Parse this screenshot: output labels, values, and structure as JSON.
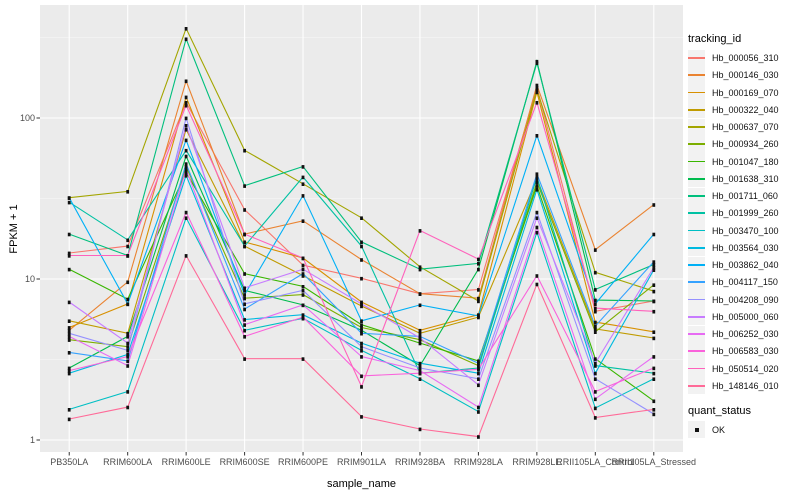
{
  "chart_data": {
    "type": "line",
    "title": "",
    "xlabel": "sample_name",
    "ylabel": "FPKM + 1",
    "x_categories": [
      "PB350LA",
      "RRIM600LA",
      "RRIM600LE",
      "RRIM600SE",
      "RRIM600PE",
      "RRIM901LA",
      "RRIM928BA",
      "RRIM928LA",
      "RRIM928LE",
      "RRII105LA_Control",
      "RRII105LA_Stressed"
    ],
    "y_axis": {
      "scale": "log10",
      "tick_values": [
        1,
        10,
        100
      ],
      "tick_labels": [
        "1",
        "10",
        "100"
      ],
      "range": [
        1,
        520
      ],
      "minor_tick_values": [
        3.162,
        31.62,
        316.2
      ]
    },
    "grid": true,
    "legend": {
      "title": "tracking_id",
      "position": "right"
    },
    "legend2": {
      "title": "quant_status",
      "items": [
        {
          "label": "OK",
          "marker": "black-square"
        }
      ]
    },
    "point_marker": {
      "shape": "square",
      "color": "#111111",
      "size": 2.8
    },
    "style": {
      "panel_bg": "#ebebeb",
      "grid_major": "#ffffff",
      "grid_minor": "#f5f5f5",
      "tick_color": "#333333",
      "tick_text": "#4d4d4d"
    },
    "series": [
      {
        "name": "Hb_000056_310",
        "color": "#F8766D",
        "values": [
          14.5,
          16,
          125,
          27,
          12.2,
          10.1,
          8.1,
          8.6,
          155,
          6.3,
          7.3
        ]
      },
      {
        "name": "Hb_000146_030",
        "color": "#EA8331",
        "values": [
          4.8,
          9.6,
          170,
          19,
          23,
          13.2,
          8.1,
          7.6,
          160,
          15.2,
          29
        ]
      },
      {
        "name": "Hb_000169_070",
        "color": "#D89000",
        "values": [
          5.0,
          7.0,
          135,
          17,
          13.5,
          7.2,
          4.8,
          6.0,
          145,
          5.4,
          4.7
        ]
      },
      {
        "name": "Hb_000322_040",
        "color": "#C09B00",
        "values": [
          5.5,
          4.6,
          85,
          16,
          10.5,
          6.8,
          4.6,
          5.8,
          42,
          4.9,
          4.3
        ]
      },
      {
        "name": "Hb_000637_070",
        "color": "#A3A500",
        "values": [
          32,
          35,
          360,
          63,
          39,
          24,
          11.9,
          7.3,
          150,
          11,
          8.4
        ]
      },
      {
        "name": "Hb_000934_260",
        "color": "#7CAE00",
        "values": [
          4.2,
          3.8,
          50,
          7.6,
          8.0,
          5.0,
          4.2,
          2.9,
          40,
          4.7,
          9.2
        ]
      },
      {
        "name": "Hb_001047_180",
        "color": "#39B600",
        "values": [
          11.5,
          7.5,
          46,
          10.8,
          9.0,
          5.2,
          4.0,
          3.1,
          38,
          3.2,
          1.75
        ]
      },
      {
        "name": "Hb_001638_310",
        "color": "#00BB4E",
        "values": [
          2.8,
          4.4,
          58,
          8.5,
          6.9,
          4.8,
          2.9,
          11.5,
          225,
          7.4,
          7.3
        ]
      },
      {
        "name": "Hb_001711_060",
        "color": "#00BF7D",
        "values": [
          19,
          14,
          310,
          38,
          50,
          17,
          11.5,
          12.5,
          220,
          8.6,
          12.3
        ]
      },
      {
        "name": "Hb_001999_260",
        "color": "#00C1A3",
        "values": [
          30,
          17.5,
          63,
          16,
          43,
          16,
          2.6,
          2.8,
          43,
          2.9,
          2.6
        ]
      },
      {
        "name": "Hb_003470_100",
        "color": "#00BFC4",
        "values": [
          1.55,
          2.0,
          24,
          4.8,
          5.7,
          3.6,
          2.4,
          1.5,
          19.5,
          1.58,
          2.4
        ]
      },
      {
        "name": "Hb_003564_030",
        "color": "#00BAE0",
        "values": [
          2.6,
          3.4,
          44,
          5.6,
          6.0,
          4.0,
          3.0,
          2.6,
          36,
          2.6,
          11.4
        ]
      },
      {
        "name": "Hb_003862_040",
        "color": "#00B0F6",
        "values": [
          32,
          7.0,
          73,
          8.0,
          33,
          5.5,
          6.9,
          5.9,
          78,
          7.0,
          19
        ]
      },
      {
        "name": "Hb_004117_150",
        "color": "#35A2FF",
        "values": [
          3.5,
          3.1,
          52,
          6.5,
          10.8,
          4.6,
          4.4,
          3.0,
          45,
          5.1,
          12.8
        ]
      },
      {
        "name": "Hb_004208_090",
        "color": "#9590FF",
        "values": [
          4.6,
          3.6,
          100,
          7.0,
          8.5,
          3.8,
          2.8,
          2.4,
          26,
          2.4,
          1.45
        ]
      },
      {
        "name": "Hb_005000_060",
        "color": "#C77CFF",
        "values": [
          7.2,
          4.0,
          90,
          8.8,
          11.5,
          7.0,
          4.3,
          2.2,
          24,
          3.0,
          11.8
        ]
      },
      {
        "name": "Hb_006252_030",
        "color": "#E76BF3",
        "values": [
          4.4,
          2.9,
          48,
          5.2,
          6.9,
          3.3,
          2.7,
          1.6,
          21,
          1.8,
          3.3
        ]
      },
      {
        "name": "Hb_006583_030",
        "color": "#FA62DB",
        "values": [
          2.7,
          3.3,
          26,
          4.4,
          5.8,
          2.5,
          2.6,
          2.75,
          10.5,
          2.0,
          2.8
        ]
      },
      {
        "name": "Hb_050514_020",
        "color": "#FF62BC",
        "values": [
          14,
          14,
          120,
          19,
          13.5,
          2.15,
          20,
          13.3,
          125,
          6.6,
          6.3
        ]
      },
      {
        "name": "Hb_148146_010",
        "color": "#FF6A98",
        "values": [
          1.35,
          1.6,
          14,
          3.2,
          3.2,
          1.4,
          1.17,
          1.05,
          9.3,
          1.38,
          1.55
        ]
      }
    ]
  }
}
